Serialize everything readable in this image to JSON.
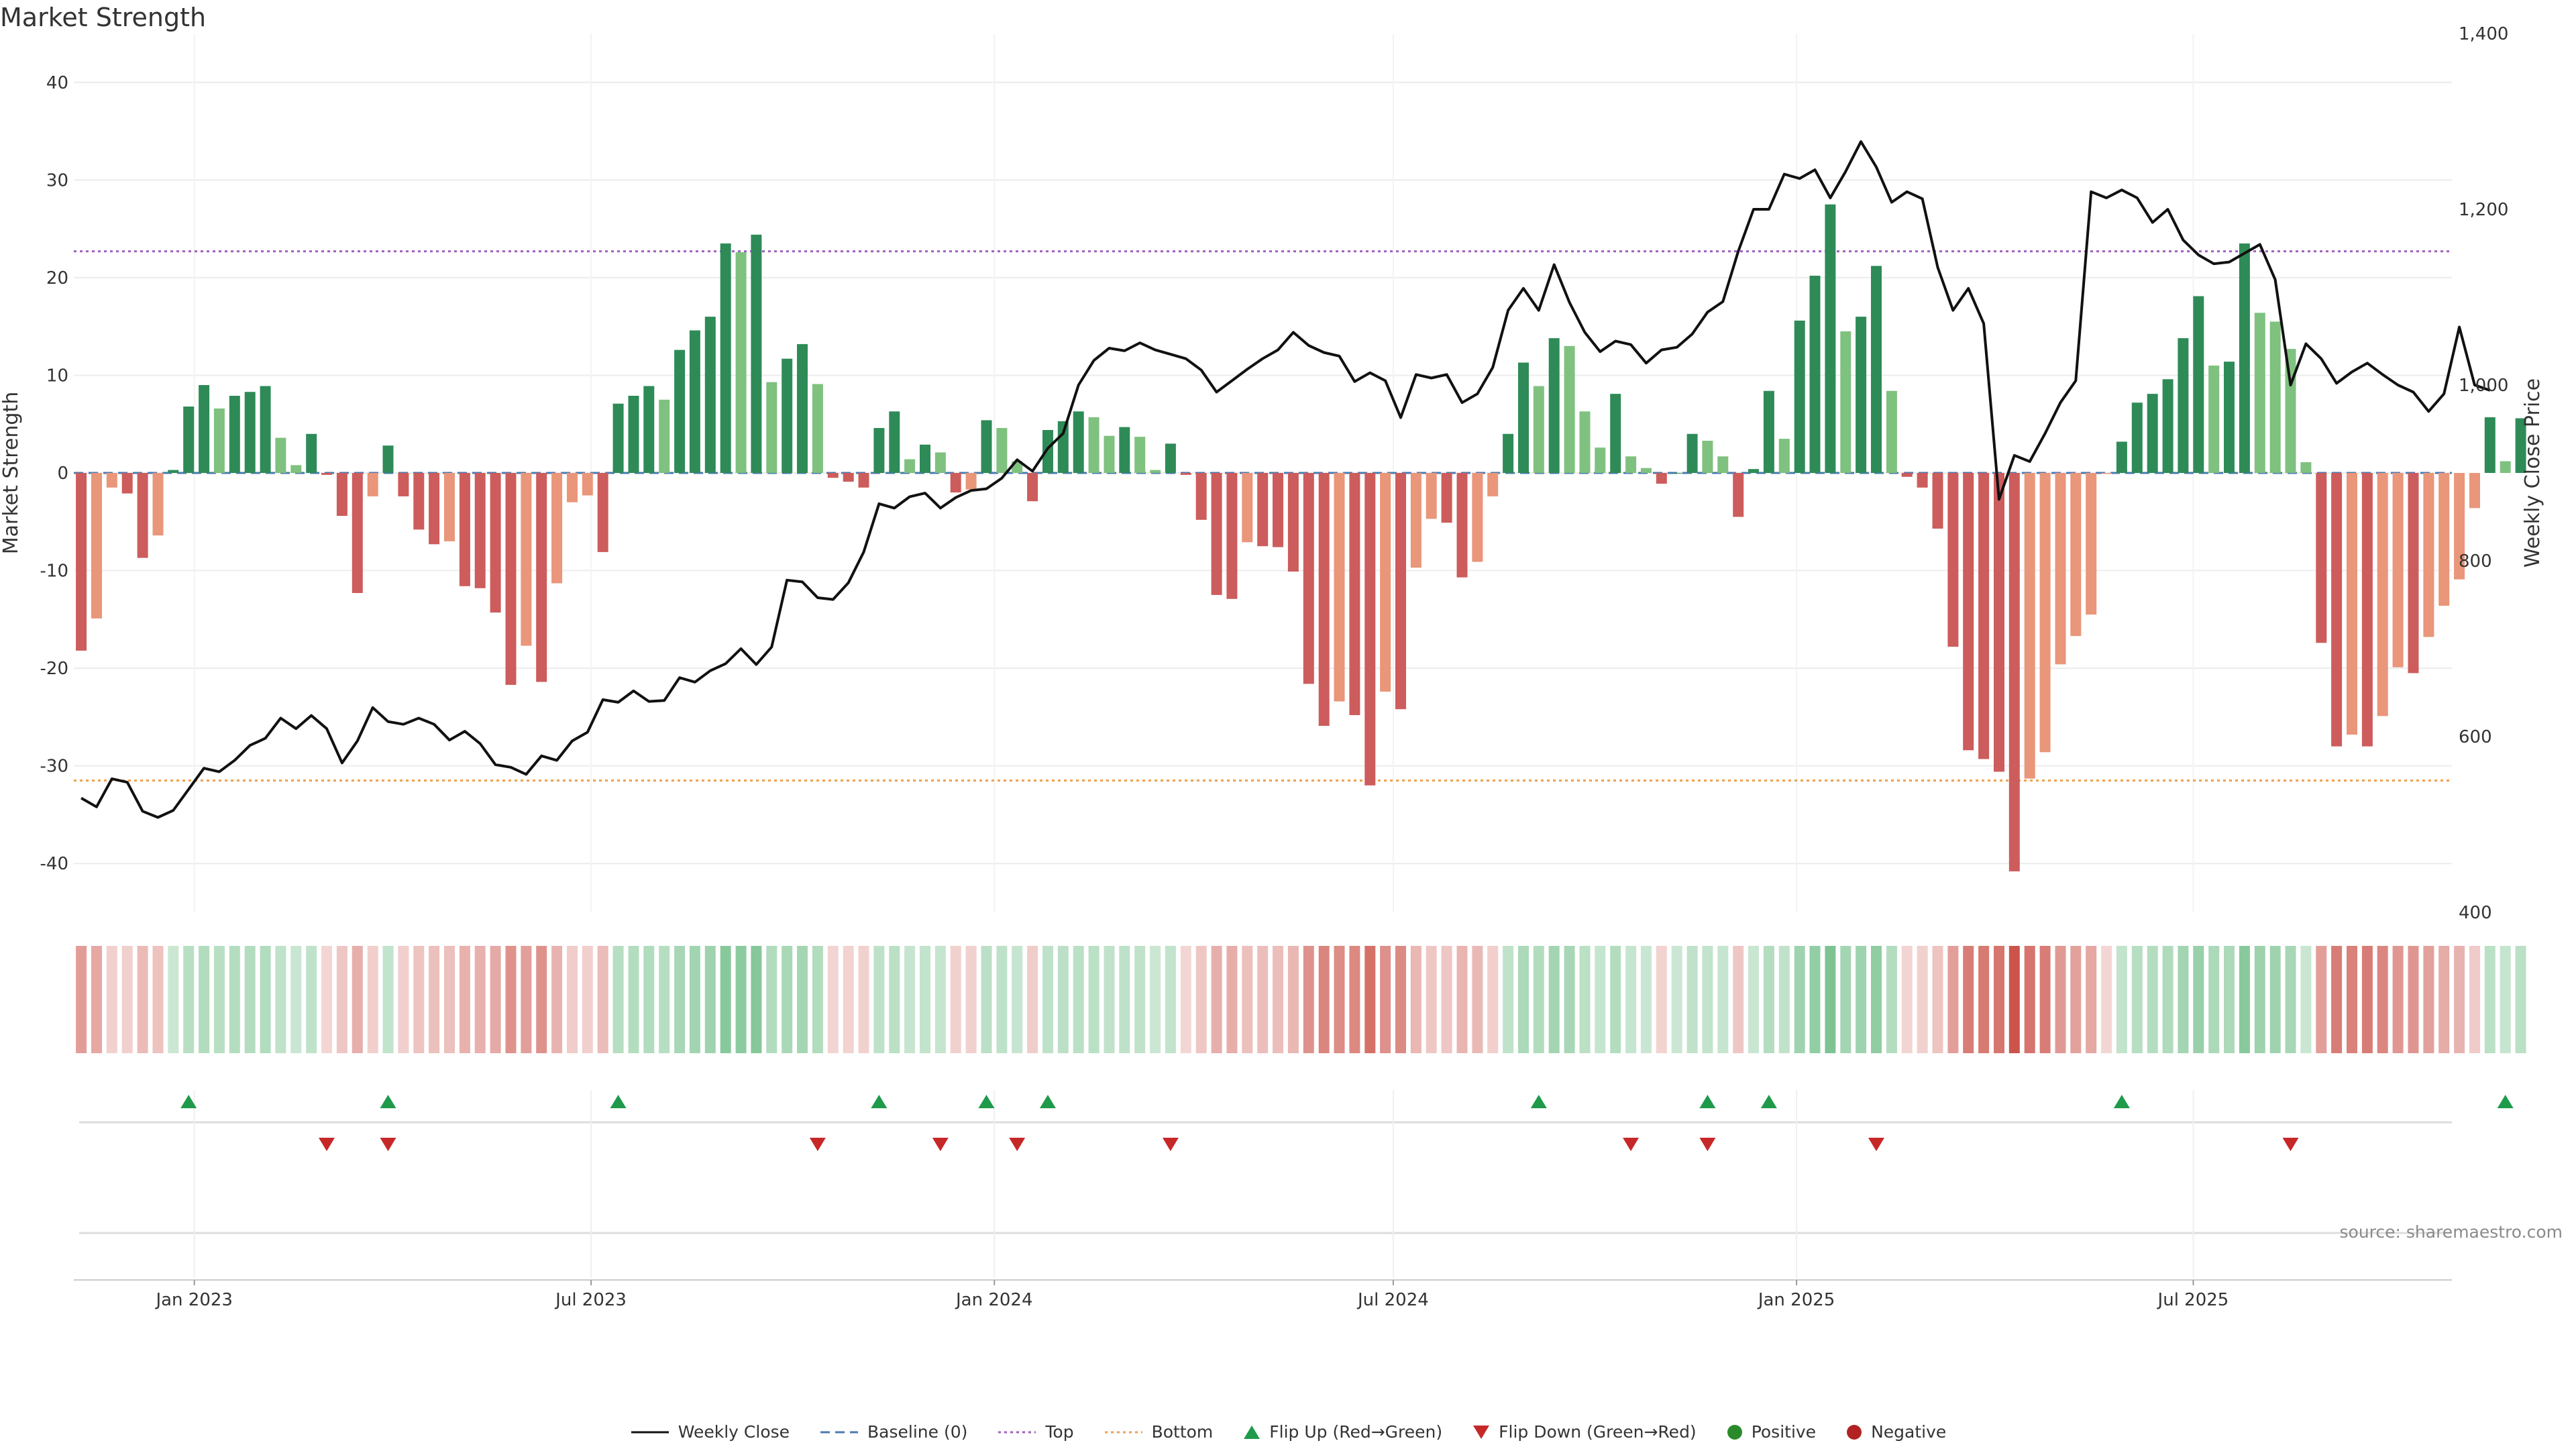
{
  "title": "Market Strength",
  "source": "source: sharemaestro.com",
  "chart_data": {
    "type": "bar",
    "title": "Market Strength",
    "ylabel": "Market Strength",
    "y2label": "Weekly Close Price",
    "ylim": [
      -45,
      45
    ],
    "y2lim": [
      400,
      1400
    ],
    "yticks": [
      -40,
      -30,
      -20,
      -10,
      0,
      10,
      20,
      30,
      40
    ],
    "y2ticks": [
      400,
      600,
      800,
      1000,
      1200,
      1400
    ],
    "y2tick_labels": [
      "400",
      "600",
      "800",
      "1,000",
      "1,200",
      "1,400"
    ],
    "grid": true,
    "top_level": 22.7,
    "bottom_level": -31.5,
    "x_start": "2022-11-07",
    "x_end": "2025-10-27",
    "x_ticks": [
      "2023-01-01",
      "2023-07-01",
      "2024-01-01",
      "2024-07-01",
      "2025-01-01",
      "2025-07-01"
    ],
    "x_tick_labels": [
      "Jan 2023",
      "Jul 2023",
      "Jan 2024",
      "Jul 2024",
      "Jan 2025",
      "Jul 2025"
    ],
    "strength": [
      -18.2,
      -14.9,
      -1.5,
      -2.1,
      -8.7,
      -6.4,
      0.3,
      6.8,
      9.0,
      6.6,
      7.9,
      8.3,
      8.9,
      3.6,
      0.8,
      4.0,
      -0.2,
      -4.4,
      -12.3,
      -2.4,
      2.8,
      -2.4,
      -5.8,
      -7.3,
      -7.0,
      -11.6,
      -11.8,
      -14.3,
      -21.7,
      -17.7,
      -21.4,
      -11.3,
      -3.0,
      -2.3,
      -8.1,
      7.1,
      7.9,
      8.9,
      7.5,
      12.6,
      14.6,
      16.0,
      23.5,
      22.6,
      24.4,
      9.3,
      11.7,
      13.2,
      9.1,
      -0.5,
      -0.9,
      -1.5,
      4.6,
      6.3,
      1.4,
      2.9,
      2.1,
      -2.0,
      -1.7,
      5.4,
      4.6,
      1.2,
      -2.9,
      4.4,
      5.3,
      6.3,
      5.7,
      3.8,
      4.7,
      3.7,
      0.3,
      3.0,
      -0.2,
      -4.8,
      -12.5,
      -12.9,
      -7.1,
      -7.5,
      -7.6,
      -10.1,
      -21.6,
      -25.9,
      -23.4,
      -24.8,
      -32.0,
      -22.4,
      -24.2,
      -9.7,
      -4.7,
      -5.1,
      -10.7,
      -9.1,
      -2.4,
      4.0,
      11.3,
      8.9,
      13.8,
      13.0,
      6.3,
      2.6,
      8.1,
      1.7,
      0.5,
      -1.1,
      0.0,
      4.0,
      3.3,
      1.7,
      -4.5,
      0.4,
      8.4,
      3.5,
      15.6,
      20.2,
      27.5,
      14.5,
      16.0,
      21.2,
      8.4,
      -0.4,
      -1.5,
      -5.7,
      -17.8,
      -28.4,
      -29.3,
      -30.6,
      -40.8,
      -31.3,
      -28.6,
      -19.6,
      -16.7,
      -14.5,
      -0.1,
      3.2,
      7.2,
      8.1,
      9.6,
      13.8,
      18.1,
      11.0,
      11.4,
      23.5,
      16.4,
      15.5,
      12.7,
      1.1,
      -17.4,
      -28.0,
      -26.8,
      -28.0,
      -24.9,
      -19.9,
      -20.5,
      -16.8,
      -13.6,
      -10.9,
      -3.6,
      5.7,
      1.2,
      5.6
    ],
    "weekly_close": [
      530,
      520,
      552,
      548,
      515,
      508,
      516,
      540,
      564,
      560,
      573,
      590,
      598,
      621,
      609,
      624,
      609,
      570,
      595,
      633,
      617,
      614,
      621,
      614,
      596,
      606,
      592,
      568,
      565,
      557,
      578,
      573,
      595,
      605,
      642,
      639,
      652,
      640,
      641,
      667,
      662,
      675,
      683,
      700,
      682,
      702,
      778,
      776,
      758,
      756,
      775,
      810,
      865,
      860,
      873,
      877,
      860,
      872,
      880,
      882,
      894,
      915,
      902,
      928,
      945,
      1000,
      1028,
      1042,
      1039,
      1048,
      1040,
      1035,
      1030,
      1017,
      992,
      1005,
      1018,
      1030,
      1040,
      1060,
      1045,
      1037,
      1033,
      1004,
      1014,
      1005,
      963,
      1012,
      1008,
      1012,
      980,
      990,
      1020,
      1085,
      1110,
      1085,
      1137,
      1094,
      1060,
      1038,
      1050,
      1046,
      1025,
      1040,
      1043,
      1058,
      1083,
      1095,
      1152,
      1200,
      1200,
      1240,
      1235,
      1245,
      1213,
      1243,
      1277,
      1248,
      1208,
      1220,
      1212,
      1134,
      1085,
      1110,
      1070,
      870,
      920,
      913,
      945,
      980,
      1005,
      1220,
      1213,
      1222,
      1213,
      1185,
      1200,
      1165,
      1148,
      1138,
      1140,
      1150,
      1160,
      1120,
      1000,
      1047,
      1030,
      1002,
      1015,
      1025,
      1012,
      1000,
      992,
      970,
      990,
      1066,
      1000,
      994
    ]
  },
  "flip_up_weeks": [
    7,
    20,
    35,
    52,
    59,
    63,
    95,
    106,
    110,
    133,
    158
  ],
  "flip_down_weeks": [
    16,
    20,
    48,
    56,
    61,
    71,
    101,
    106,
    117,
    144
  ],
  "legend": {
    "weekly_close": "Weekly Close",
    "baseline": "Baseline (0)",
    "top": "Top",
    "bottom": "Bottom",
    "flip_up": "Flip Up (Red→Green)",
    "flip_down": "Flip Down (Green→Red)",
    "positive": "Positive",
    "negative": "Negative"
  },
  "colors": {
    "bar_strong_green": "#2e8b57",
    "bar_light_green": "#7fc17f",
    "bar_strong_red": "#cd5c5c",
    "bar_light_red": "#e9967a",
    "close_line": "#111111",
    "baseline": "#4a7ab0",
    "top_line": "#a060c0",
    "bottom_line": "#f0a050",
    "flip_up": "#1f9a4a",
    "flip_down": "#c62828",
    "positive": "#2a8a2a",
    "negative": "#b22222",
    "grid": "#ececec"
  }
}
